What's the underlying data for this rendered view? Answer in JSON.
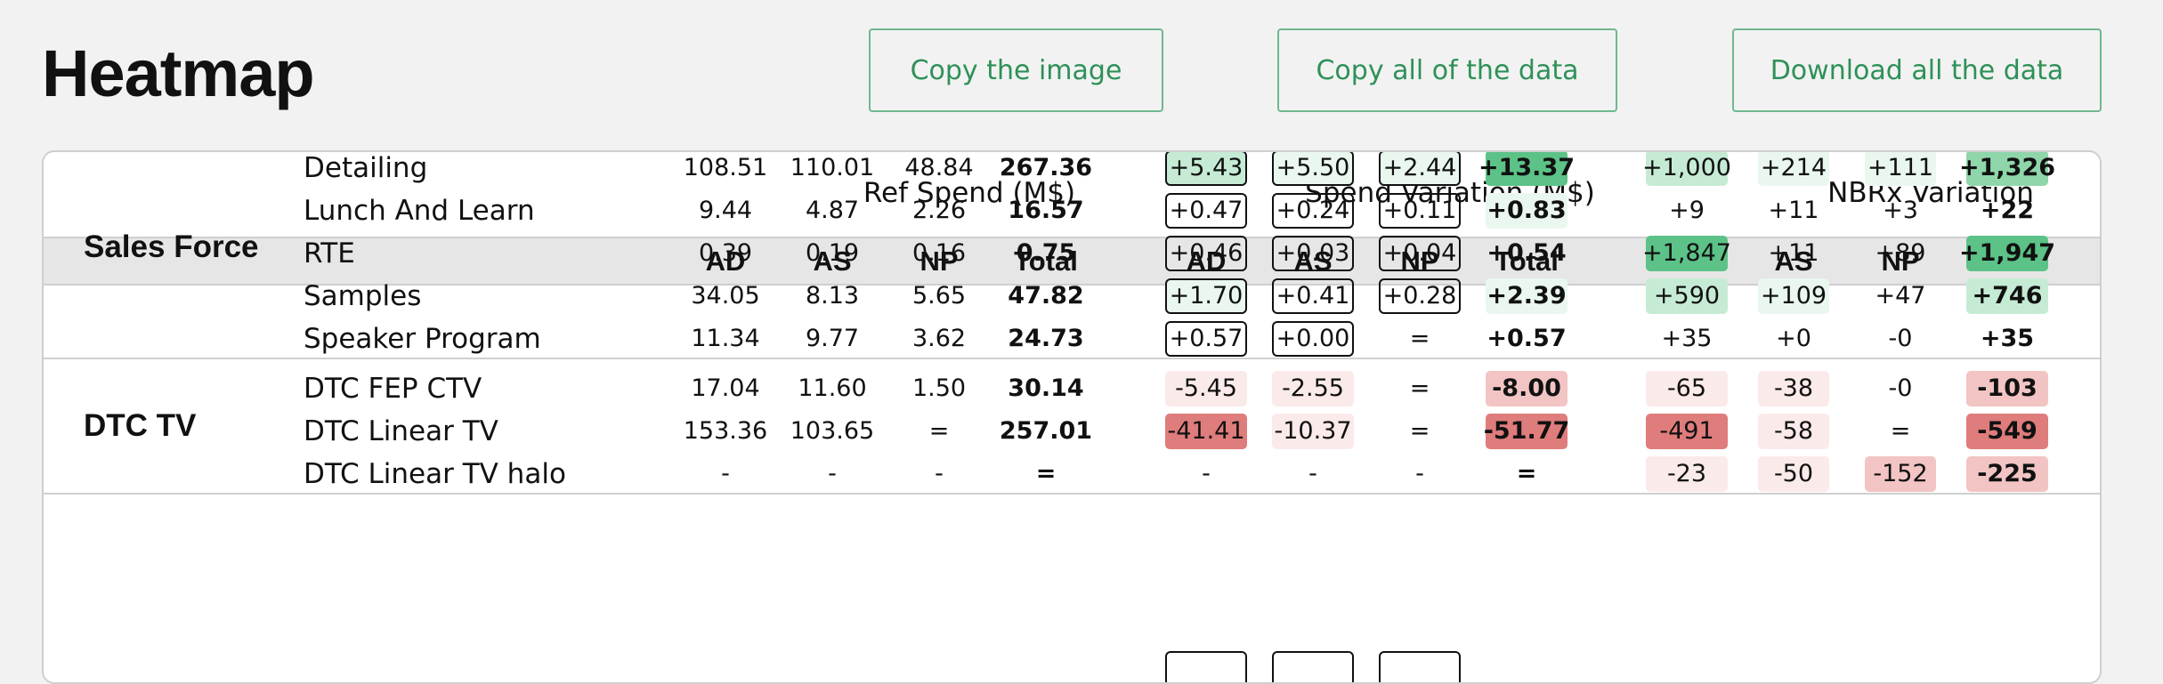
{
  "page": {
    "title": "Heatmap"
  },
  "toolbar": {
    "copy_image": "Copy the image",
    "copy_data": "Copy all of the data",
    "download_data": "Download all the data"
  },
  "table": {
    "group_headers": [
      "Ref Spend (M$)",
      "Spend Variation (M$)",
      "NBRx Variation"
    ],
    "column_headers": [
      "AD",
      "AS",
      "NP",
      "Total",
      "AD",
      "AS",
      "NP",
      "Total",
      "AD",
      "AS",
      "NP",
      "Total"
    ],
    "groups": [
      {
        "name": "Sales Force",
        "rows": [
          {
            "label": "Detailing",
            "values": [
              "108.51",
              "110.01",
              "48.84",
              "267.36",
              "+5.43",
              "+5.50",
              "+2.44",
              "+13.37",
              "+1,000",
              "+214",
              "+111",
              "+1,326"
            ]
          },
          {
            "label": "Lunch And Learn",
            "values": [
              "9.44",
              "4.87",
              "2.26",
              "16.57",
              "+0.47",
              "+0.24",
              "+0.11",
              "+0.83",
              "+9",
              "+11",
              "+3",
              "+22"
            ]
          },
          {
            "label": "RTE",
            "values": [
              "0.39",
              "0.19",
              "0.16",
              "0.75",
              "+0.46",
              "+0.03",
              "+0.04",
              "+0.54",
              "+1,847",
              "+11",
              "+89",
              "+1,947"
            ]
          },
          {
            "label": "Samples",
            "values": [
              "34.05",
              "8.13",
              "5.65",
              "47.82",
              "+1.70",
              "+0.41",
              "+0.28",
              "+2.39",
              "+590",
              "+109",
              "+47",
              "+746"
            ]
          },
          {
            "label": "Speaker Program",
            "values": [
              "11.34",
              "9.77",
              "3.62",
              "24.73",
              "+0.57",
              "+0.00",
              "=",
              "+0.57",
              "+35",
              "+0",
              "-0",
              "+35"
            ]
          }
        ]
      },
      {
        "name": "DTC TV",
        "rows": [
          {
            "label": "DTC FEP CTV",
            "values": [
              "17.04",
              "11.60",
              "1.50",
              "30.14",
              "-5.45",
              "-2.55",
              "=",
              "-8.00",
              "-65",
              "-38",
              "-0",
              "-103"
            ]
          },
          {
            "label": "DTC Linear TV",
            "values": [
              "153.36",
              "103.65",
              "=",
              "257.01",
              "-41.41",
              "-10.37",
              "=",
              "-51.77",
              "-491",
              "-58",
              "=",
              "-549"
            ]
          },
          {
            "label": "DTC Linear TV halo",
            "values": [
              "-",
              "-",
              "-",
              "=",
              "-",
              "-",
              "-",
              "=",
              "-23",
              "-50",
              "-152",
              "-225"
            ]
          }
        ]
      }
    ],
    "colors": {
      "green_strong": "#5cc287",
      "green_medium": "#8fd6aa",
      "green_light": "#c6ebd5",
      "green_faint": "#eaf7ef",
      "red_strong": "#df7c7c",
      "red_medium": "#f2c4c4",
      "red_faint": "#fbeaea"
    }
  }
}
